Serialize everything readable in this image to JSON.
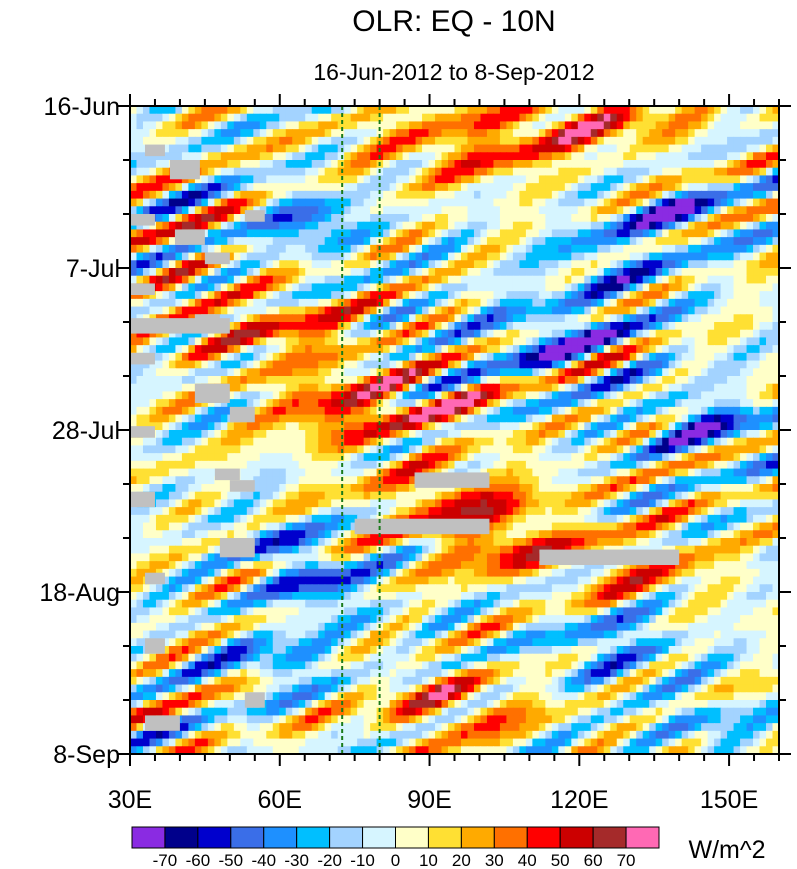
{
  "chart_data": {
    "type": "heatmap",
    "title": "OLR: EQ - 10N",
    "subtitle": "16-Jun-2012 to 8-Sep-2012",
    "units": "W/m^2",
    "x_ticks": [
      "30E",
      "60E",
      "90E",
      "120E",
      "150E"
    ],
    "x_tick_values": [
      30,
      60,
      90,
      120,
      150
    ],
    "xlim": [
      30,
      160
    ],
    "y_ticks": [
      "16-Jun",
      "7-Jul",
      "28-Jul",
      "18-Aug",
      "8-Sep"
    ],
    "y_tick_days": [
      0,
      21,
      42,
      63,
      84
    ],
    "ylim_days": [
      0,
      84
    ],
    "reference_longitudes": [
      72.5,
      80
    ],
    "colorbar_levels": [
      -70,
      -60,
      -50,
      -40,
      -30,
      -20,
      -10,
      0,
      10,
      20,
      30,
      40,
      50,
      60,
      70
    ],
    "colorbar_labels": [
      "-70",
      "-60",
      "-50",
      "-40",
      "-30",
      "-20",
      "-10",
      "0",
      "10",
      "20",
      "30",
      "40",
      "50",
      "60",
      "70"
    ],
    "colorbar_colors": [
      "#8a2be2",
      "#00008b",
      "#0000cd",
      "#3a6ee8",
      "#1e90ff",
      "#00bfff",
      "#a3d3ff",
      "#d6f5ff",
      "#ffffc8",
      "#ffe033",
      "#ffaa00",
      "#ff7000",
      "#ff0000",
      "#cc0000",
      "#a52a2a",
      "#ff69b4"
    ],
    "missing_color": "#c0c0c0",
    "missing_blocks": [
      {
        "lon": [
          33,
          37
        ],
        "day": [
          5,
          6.5
        ]
      },
      {
        "lon": [
          38,
          44
        ],
        "day": [
          7,
          9.5
        ]
      },
      {
        "lon": [
          30,
          35
        ],
        "day": [
          14,
          15.5
        ]
      },
      {
        "lon": [
          39,
          45
        ],
        "day": [
          16,
          18
        ]
      },
      {
        "lon": [
          53,
          57
        ],
        "day": [
          13.5,
          15
        ]
      },
      {
        "lon": [
          45,
          50
        ],
        "day": [
          19,
          20.5
        ]
      },
      {
        "lon": [
          30,
          35
        ],
        "day": [
          23,
          24.5
        ]
      },
      {
        "lon": [
          30,
          50
        ],
        "day": [
          27.5,
          29.5
        ]
      },
      {
        "lon": [
          43,
          48
        ],
        "day": [
          27,
          28
        ]
      },
      {
        "lon": [
          30,
          35
        ],
        "day": [
          32,
          33.5
        ]
      },
      {
        "lon": [
          43,
          50
        ],
        "day": [
          36,
          38.5
        ]
      },
      {
        "lon": [
          50,
          55
        ],
        "day": [
          39,
          41
        ]
      },
      {
        "lon": [
          30,
          35
        ],
        "day": [
          41.5,
          43
        ]
      },
      {
        "lon": [
          47,
          52
        ],
        "day": [
          47,
          48.5
        ]
      },
      {
        "lon": [
          50,
          55
        ],
        "day": [
          48.5,
          50
        ]
      },
      {
        "lon": [
          30,
          35
        ],
        "day": [
          50,
          52
        ]
      },
      {
        "lon": [
          87,
          102
        ],
        "day": [
          47.5,
          49.5
        ]
      },
      {
        "lon": [
          75,
          102
        ],
        "day": [
          53.5,
          55.5
        ]
      },
      {
        "lon": [
          48,
          55
        ],
        "day": [
          56,
          58.5
        ]
      },
      {
        "lon": [
          112,
          140
        ],
        "day": [
          57.5,
          59.5
        ]
      },
      {
        "lon": [
          33,
          37
        ],
        "day": [
          60.5,
          62
        ]
      },
      {
        "lon": [
          33,
          37
        ],
        "day": [
          69,
          71
        ]
      },
      {
        "lon": [
          53,
          57
        ],
        "day": [
          76,
          78
        ]
      },
      {
        "lon": [
          33,
          40
        ],
        "day": [
          79,
          81
        ]
      }
    ],
    "anomaly_features": [
      {
        "lon": 100,
        "day": 5,
        "value": 40,
        "slon": 22,
        "sday": 5
      },
      {
        "lon": 125,
        "day": 2,
        "value": 40,
        "slon": 18,
        "sday": 3
      },
      {
        "lon": 66,
        "day": 15,
        "value": -45,
        "slon": 10,
        "sday": 4
      },
      {
        "lon": 40,
        "day": 25,
        "value": 12,
        "slon": 14,
        "sday": 9
      },
      {
        "lon": 62,
        "day": 29,
        "value": 40,
        "slon": 16,
        "sday": 4
      },
      {
        "lon": 72,
        "day": 39,
        "value": 50,
        "slon": 14,
        "sday": 5
      },
      {
        "lon": 92,
        "day": 39,
        "value": 30,
        "slon": 12,
        "sday": 4
      },
      {
        "lon": 96,
        "day": 51,
        "value": 45,
        "slon": 18,
        "sday": 4
      },
      {
        "lon": 103,
        "day": 57,
        "value": 45,
        "slon": 14,
        "sday": 4
      },
      {
        "lon": 68,
        "day": 62,
        "value": -50,
        "slon": 10,
        "sday": 4
      },
      {
        "lon": 58,
        "day": 56,
        "value": -35,
        "slon": 8,
        "sday": 3
      },
      {
        "lon": 115,
        "day": 30,
        "value": -40,
        "slon": 16,
        "sday": 5
      },
      {
        "lon": 128,
        "day": 20,
        "value": -30,
        "slon": 14,
        "sday": 6
      },
      {
        "lon": 140,
        "day": 14,
        "value": -40,
        "slon": 10,
        "sday": 3
      },
      {
        "lon": 145,
        "day": 41,
        "value": -45,
        "slon": 12,
        "sday": 4
      },
      {
        "lon": 132,
        "day": 60,
        "value": 30,
        "slon": 16,
        "sday": 5
      },
      {
        "lon": 128,
        "day": 70,
        "value": -35,
        "slon": 14,
        "sday": 5
      },
      {
        "lon": 95,
        "day": 78,
        "value": 40,
        "slon": 16,
        "sday": 4
      },
      {
        "lon": 60,
        "day": 72,
        "value": -40,
        "slon": 12,
        "sday": 3
      },
      {
        "lon": 145,
        "day": 80,
        "value": -30,
        "slon": 10,
        "sday": 3
      }
    ]
  }
}
